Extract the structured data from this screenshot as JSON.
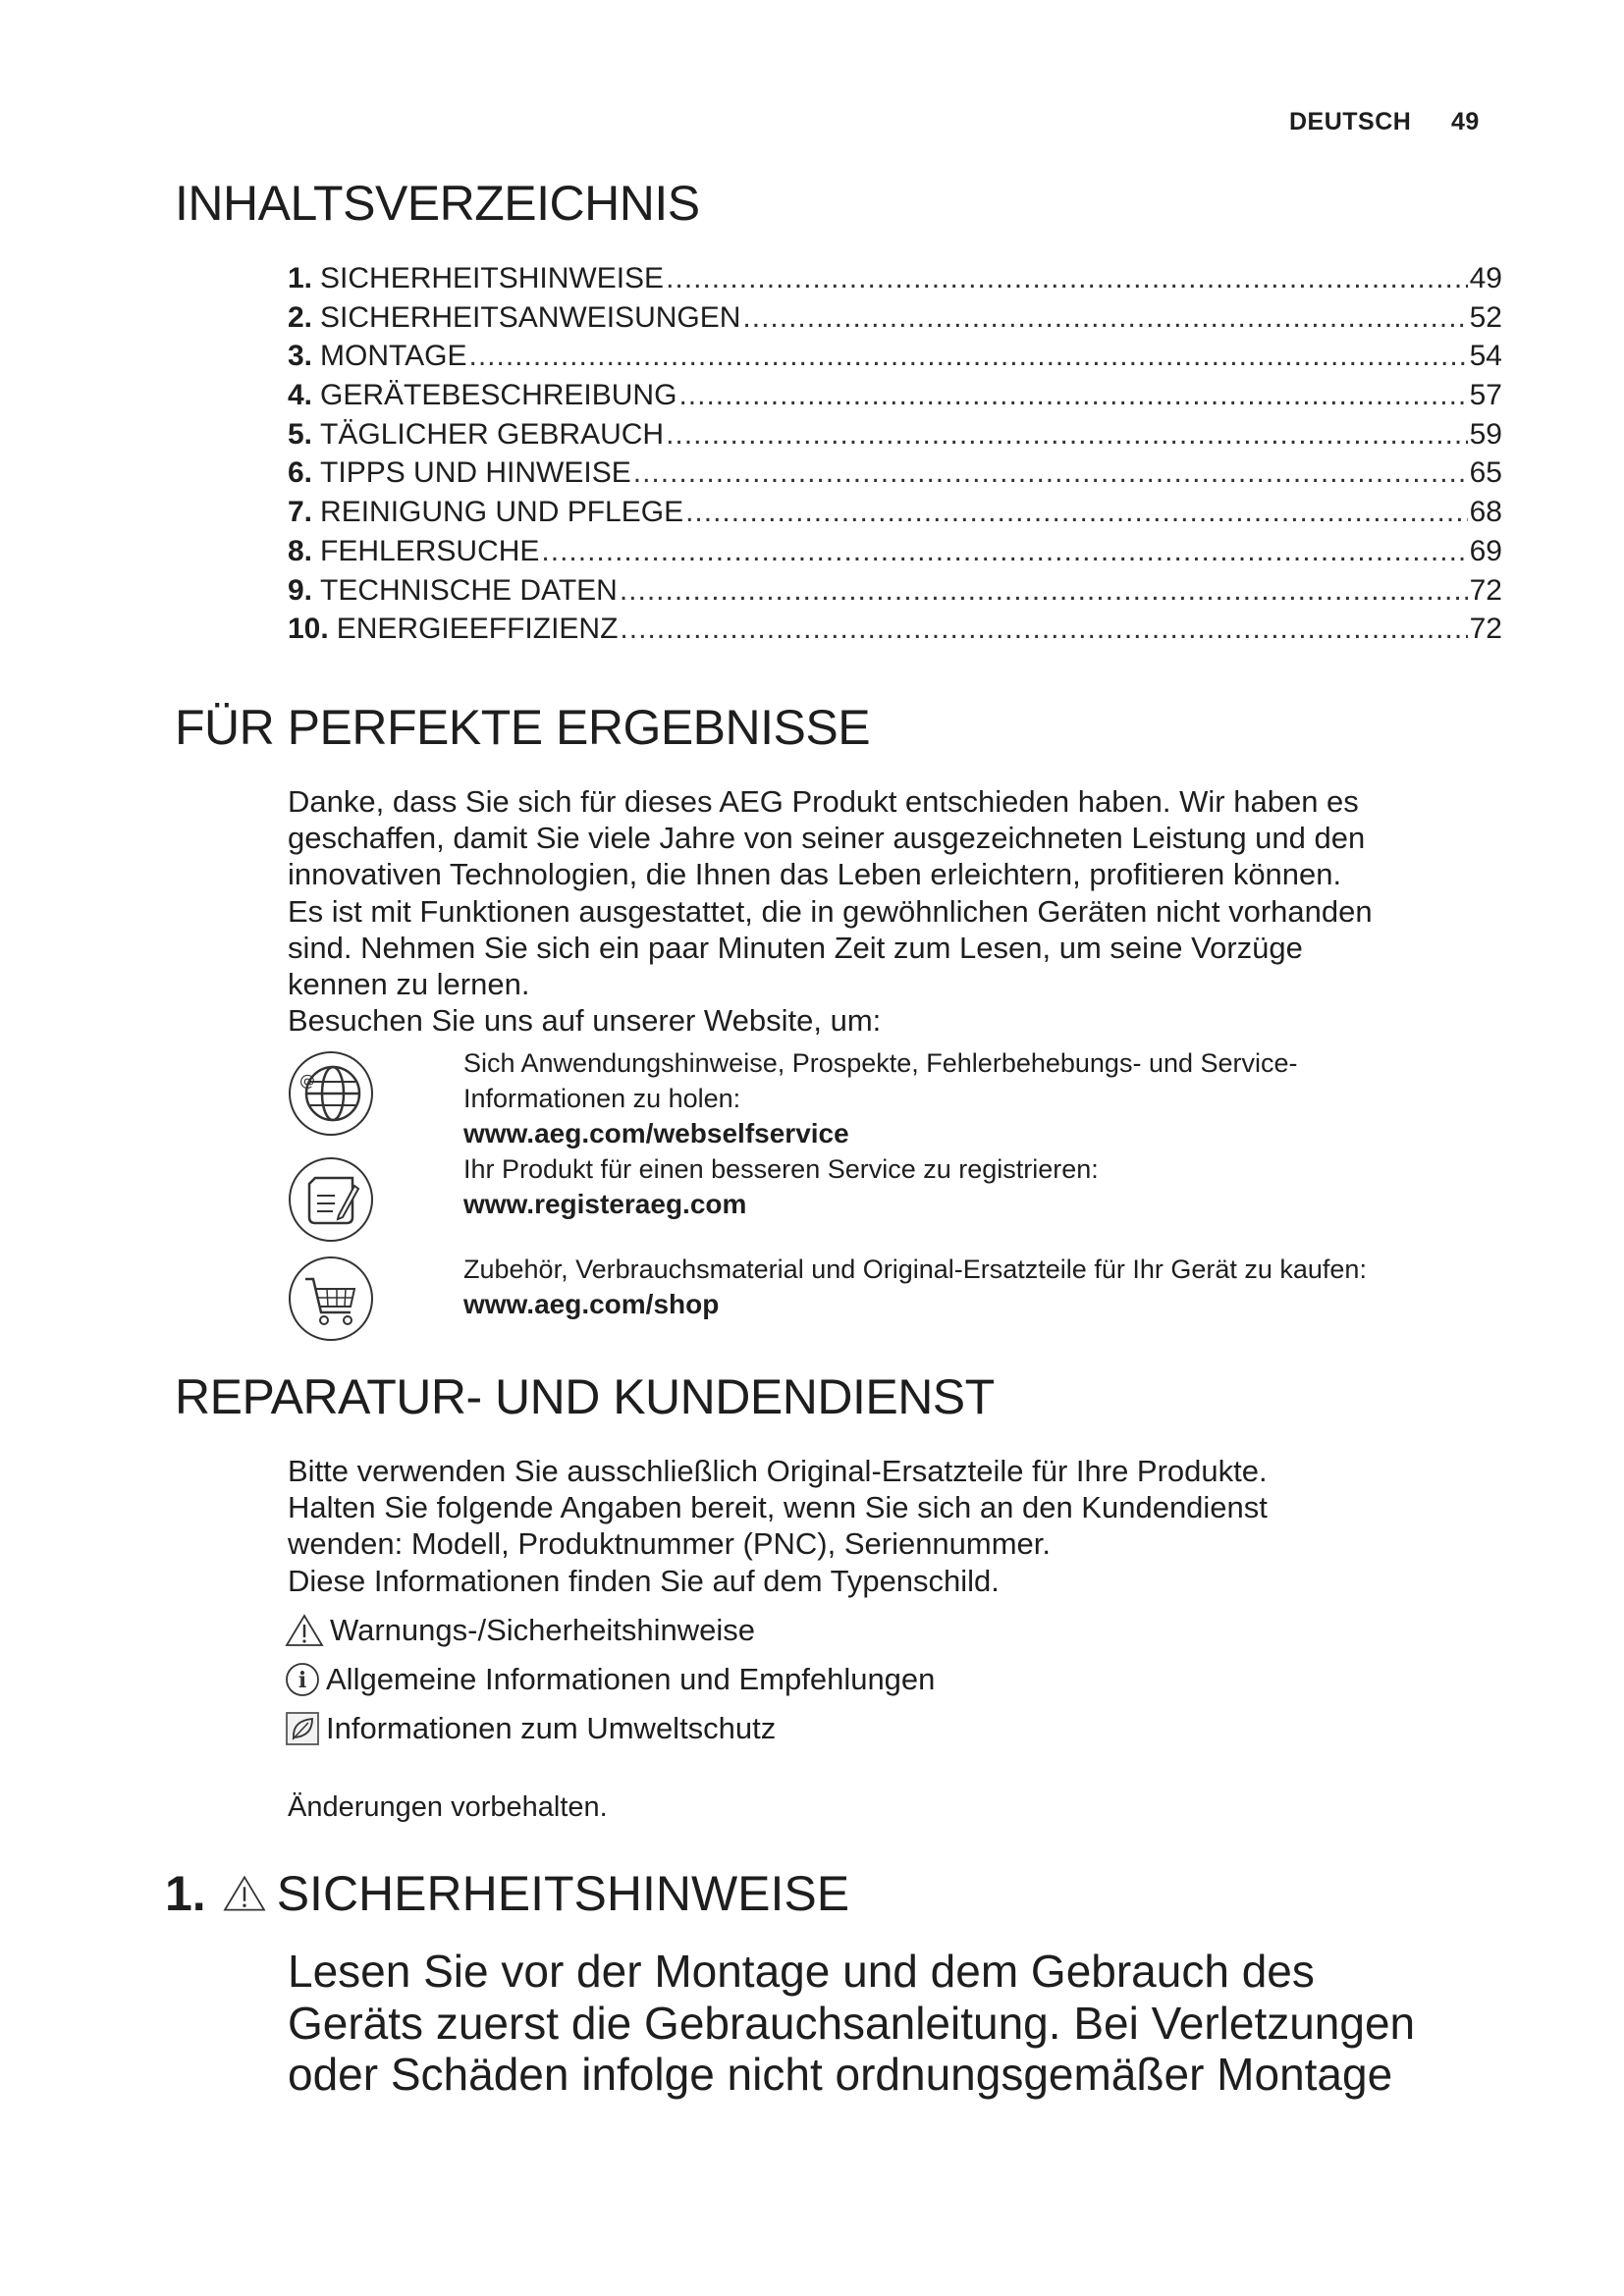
{
  "header": {
    "language": "DEUTSCH",
    "page_number": "49"
  },
  "toc": {
    "title": "INHALTSVERZEICHNIS",
    "items": [
      {
        "num": "1.",
        "label": "SICHERHEITSHINWEISE",
        "page": "49"
      },
      {
        "num": "2.",
        "label": "SICHERHEITSANWEISUNGEN",
        "page": "52"
      },
      {
        "num": "3.",
        "label": "MONTAGE",
        "page": "54"
      },
      {
        "num": "4.",
        "label": "GERÄTEBESCHREIBUNG",
        "page": "57"
      },
      {
        "num": "5.",
        "label": "TÄGLICHER GEBRAUCH",
        "page": "59"
      },
      {
        "num": "6.",
        "label": "TIPPS UND HINWEISE",
        "page": "65"
      },
      {
        "num": "7.",
        "label": "REINIGUNG UND PFLEGE",
        "page": "68"
      },
      {
        "num": "8.",
        "label": "FEHLERSUCHE",
        "page": "69"
      },
      {
        "num": "9.",
        "label": "TECHNISCHE DATEN",
        "page": "72"
      },
      {
        "num": "10.",
        "label": "ENERGIEEFFIZIENZ",
        "page": "72"
      }
    ]
  },
  "results": {
    "title": "FÜR PERFEKTE ERGEBNISSE",
    "lines": [
      "Danke, dass Sie sich für dieses AEG Produkt entschieden haben. Wir haben es",
      "geschaffen, damit Sie viele Jahre von seiner ausgezeichneten Leistung und den",
      "innovativen Technologien, die Ihnen das Leben erleichtern, profitieren können.",
      "Es ist mit Funktionen ausgestattet, die in gewöhnlichen Geräten nicht vorhanden",
      "sind. Nehmen Sie sich ein paar Minuten Zeit zum Lesen, um seine Vorzüge",
      "kennen zu lernen.",
      "Besuchen Sie uns auf unserer Website, um:"
    ],
    "links": [
      {
        "icon": "globe-icon",
        "text1": "Sich Anwendungshinweise, Prospekte, Fehlerbehebungs- und Service-",
        "text2": "Informationen zu holen:",
        "url": "www.aeg.com/webselfservice"
      },
      {
        "icon": "register-note-icon",
        "text1": "Ihr Produkt für einen besseren Service zu registrieren:",
        "url": "www.registeraeg.com"
      },
      {
        "icon": "shopping-cart-icon",
        "text1": "Zubehör, Verbrauchsmaterial und Original-Ersatzteile für Ihr Gerät zu kaufen:",
        "url": "www.aeg.com/shop"
      }
    ]
  },
  "service": {
    "title": "REPARATUR- UND KUNDENDIENST",
    "lines": [
      "Bitte verwenden Sie ausschließlich Original-Ersatzteile für Ihre Produkte.",
      "Halten Sie folgende Angaben bereit, wenn Sie sich an den Kundendienst",
      "wenden: Modell, Produktnummer (PNC), Seriennummer.",
      "Diese Informationen finden Sie auf dem Typenschild."
    ],
    "legend": [
      {
        "icon": "warning-icon",
        "label": "Warnungs-/Sicherheitshinweise"
      },
      {
        "icon": "info-icon",
        "label": "Allgemeine Informationen und Empfehlungen"
      },
      {
        "icon": "leaf-icon",
        "label": "Informationen zum Umweltschutz"
      }
    ],
    "note": "Änderungen vorbehalten."
  },
  "section1": {
    "number": "1.",
    "title": "SICHERHEITSHINWEISE",
    "lines": [
      "Lesen Sie vor der Montage und dem Gebrauch des",
      "Geräts zuerst die Gebrauchsanleitung. Bei Verletzungen",
      "oder Schäden infolge nicht ordnungsgemäßer Montage"
    ]
  }
}
